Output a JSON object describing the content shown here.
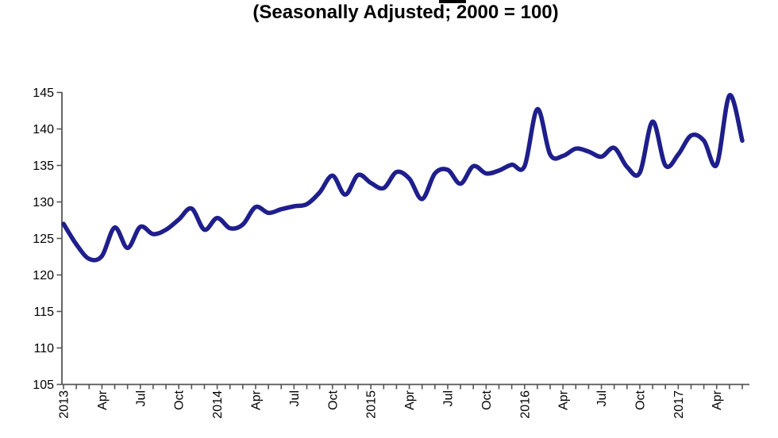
{
  "chart_title": {
    "text": "(Seasonally Adjusted; 2000 = 100)"
  },
  "colors": {
    "line": "#1e1e8c",
    "axis": "#555555",
    "label": "#000000",
    "background": "#ffffff"
  },
  "chart_data": {
    "type": "line",
    "title": "(Seasonally Adjusted; 2000 = 100)",
    "frequency": "monthly",
    "start_month": "Jan 2013",
    "end_month": "Jun 2017",
    "values": [
      127.0,
      124.2,
      122.2,
      122.6,
      126.5,
      123.7,
      126.6,
      125.6,
      126.2,
      127.6,
      129.1,
      126.2,
      127.8,
      126.4,
      126.9,
      129.3,
      128.5,
      129.0,
      129.4,
      129.7,
      131.3,
      133.6,
      131.0,
      133.7,
      132.6,
      131.9,
      134.1,
      133.2,
      130.4,
      133.9,
      134.4,
      132.5,
      134.9,
      133.9,
      134.3,
      135.1,
      134.9,
      142.7,
      136.5,
      136.3,
      137.3,
      136.9,
      136.2,
      137.4,
      134.8,
      134.0,
      141.0,
      135.0,
      136.5,
      139.1,
      138.4,
      135.1,
      144.6,
      138.4
    ],
    "ylim": [
      105,
      145
    ],
    "ytick_step": 5,
    "y_tick_labels": [
      "105",
      "110",
      "115",
      "120",
      "125",
      "130",
      "135",
      "140",
      "145"
    ],
    "x_label_interval": 3,
    "x_tick_labels": [
      "2013",
      "Apr",
      "Jul",
      "Oct",
      "2014",
      "Apr",
      "Jul",
      "Oct",
      "2015",
      "Apr",
      "Jul",
      "Oct",
      "2016",
      "Apr",
      "Jul",
      "Oct",
      "2017",
      "Apr"
    ],
    "grid": false,
    "legend": "none",
    "line_smoothing": true
  }
}
